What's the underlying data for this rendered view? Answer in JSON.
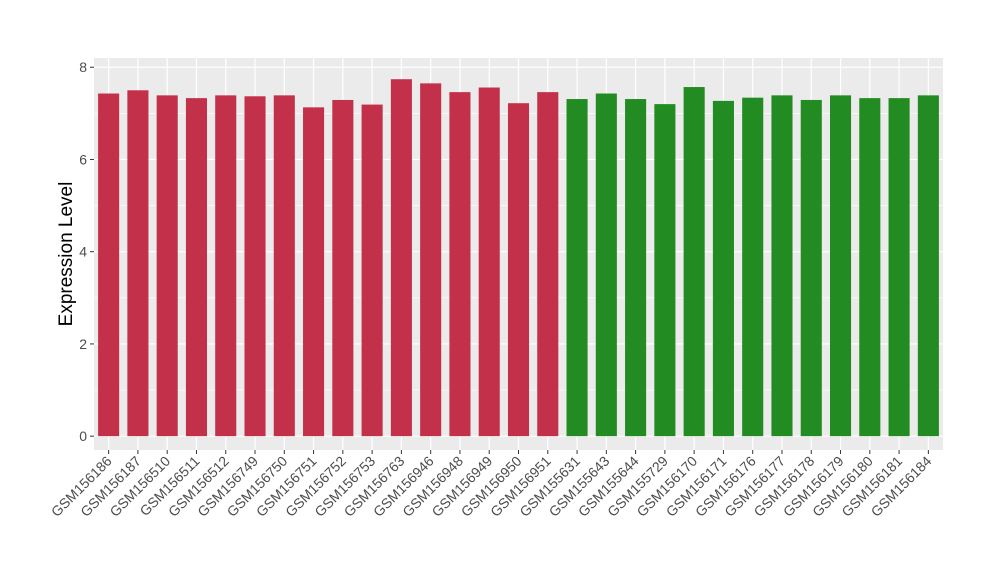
{
  "chart_data": {
    "type": "bar",
    "title": "",
    "xlabel": "",
    "ylabel": "Expression Level",
    "ylim": [
      -0.3,
      8.2
    ],
    "yticks": [
      0,
      2,
      4,
      6,
      8
    ],
    "grid": true,
    "categories": [
      "GSM156186",
      "GSM156187",
      "GSM156510",
      "GSM156511",
      "GSM156512",
      "GSM156749",
      "GSM156750",
      "GSM156751",
      "GSM156752",
      "GSM156753",
      "GSM156763",
      "GSM156946",
      "GSM156948",
      "GSM156949",
      "GSM156950",
      "GSM156951",
      "GSM155631",
      "GSM155643",
      "GSM155644",
      "GSM155729",
      "GSM156170",
      "GSM156171",
      "GSM156176",
      "GSM156177",
      "GSM156178",
      "GSM156179",
      "GSM156180",
      "GSM156181",
      "GSM156184"
    ],
    "values": [
      7.43,
      7.5,
      7.39,
      7.33,
      7.39,
      7.37,
      7.39,
      7.13,
      7.29,
      7.19,
      7.74,
      7.65,
      7.46,
      7.56,
      7.22,
      7.46,
      7.31,
      7.43,
      7.31,
      7.2,
      7.57,
      7.27,
      7.34,
      7.39,
      7.29,
      7.39,
      7.33,
      7.33,
      7.39
    ],
    "group_sizes": [
      16,
      13
    ],
    "colors": [
      "#c3304a",
      "#228b22"
    ],
    "panel_background": "#ebebeb",
    "gridline_color": "#ffffff"
  }
}
